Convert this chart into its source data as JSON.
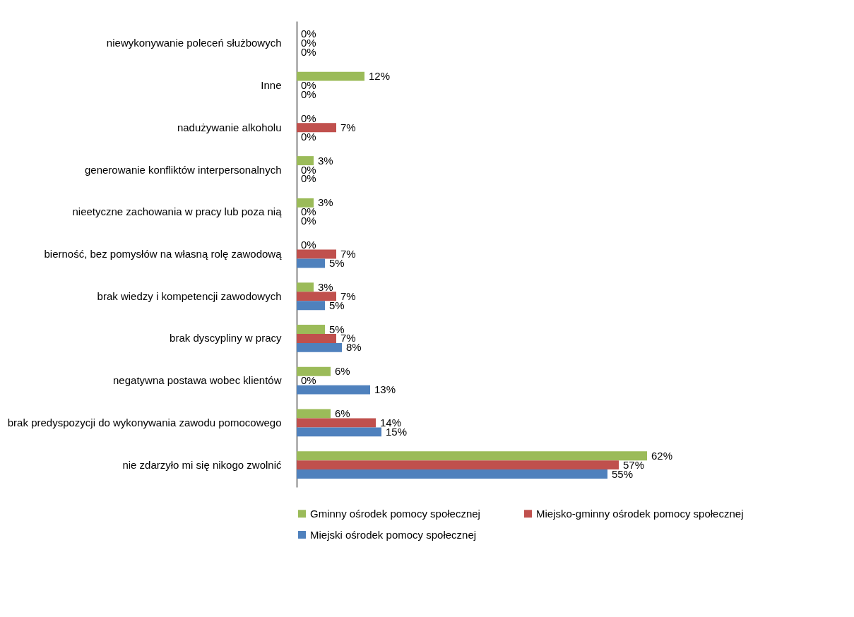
{
  "chart_data": {
    "type": "bar",
    "orientation": "horizontal",
    "categories": [
      "niewykonywanie poleceń służbowych",
      "Inne",
      "nadużywanie alkoholu",
      "generowanie konfliktów interpersonalnych",
      "nieetyczne zachowania w pracy lub poza nią",
      "bierność, bez pomysłów na własną rolę zawodową",
      "brak wiedzy i kompetencji zawodowych",
      "brak dyscypliny w pracy",
      "negatywna postawa wobec klientów",
      "brak predyspozycji do wykonywania zawodu pomocowego",
      "nie zdarzyło mi się nikogo zwolnić"
    ],
    "series": [
      {
        "name": "Gminny ośrodek pomocy społecznej",
        "color": "#9bbb59",
        "values": [
          0,
          12,
          0,
          3,
          3,
          0,
          3,
          5,
          6,
          6,
          62
        ],
        "value_labels": [
          "0%",
          "12%",
          "0%",
          "3%",
          "3%",
          "0%",
          "3%",
          "5%",
          "6%",
          "6%",
          "62%"
        ]
      },
      {
        "name": "Miejsko-gminny ośrodek pomocy społecznej",
        "color": "#c0504d",
        "values": [
          0,
          0,
          7,
          0,
          0,
          7,
          7,
          7,
          0,
          14,
          57
        ],
        "value_labels": [
          "0%",
          "0%",
          "7%",
          "0%",
          "0%",
          "7%",
          "7%",
          "7%",
          "0%",
          "14%",
          "57%"
        ]
      },
      {
        "name": "Miejski ośrodek pomocy społecznej",
        "color": "#4f81bd",
        "values": [
          0,
          0,
          0,
          0,
          0,
          5,
          5,
          8,
          13,
          15,
          55
        ],
        "value_labels": [
          "0%",
          "0%",
          "0%",
          "0%",
          "0%",
          "5%",
          "5%",
          "8%",
          "13%",
          "15%",
          "55%"
        ]
      }
    ],
    "legend": "bottom"
  }
}
